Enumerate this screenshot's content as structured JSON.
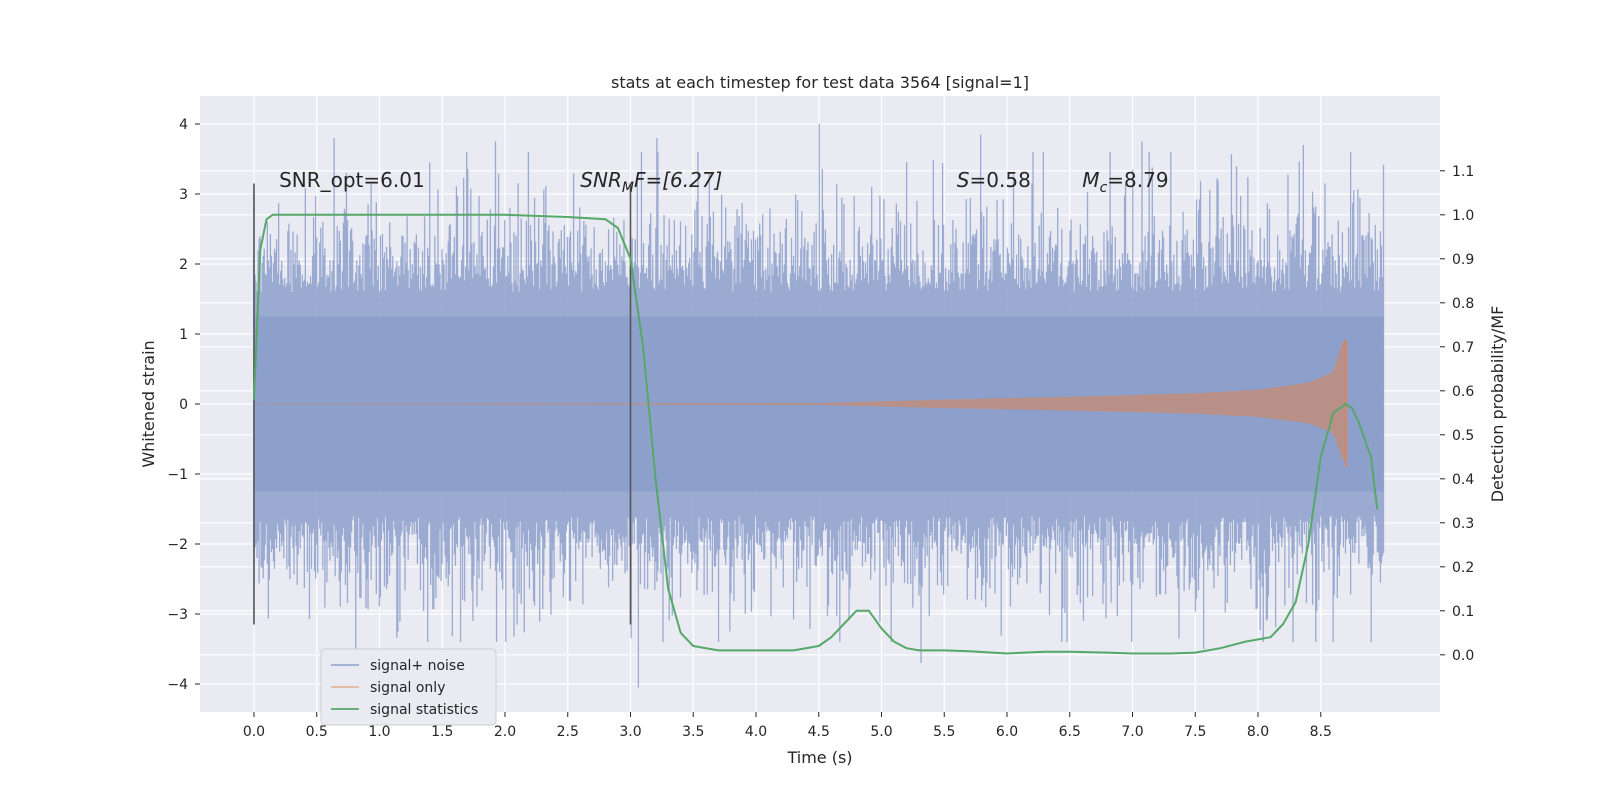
{
  "chart_data": {
    "type": "line",
    "title": "stats at each timestep for test data 3564 [signal=1]",
    "xlabel": "Time (s)",
    "ylabel": "Whitened strain",
    "y2label": "Detection probability/MF",
    "xlim": [
      -0.43,
      9.45
    ],
    "ylim": [
      -4.4,
      4.4
    ],
    "y2lim": [
      -0.13,
      1.27
    ],
    "x_ticks": [
      0.0,
      0.5,
      1.0,
      1.5,
      2.0,
      2.5,
      3.0,
      3.5,
      4.0,
      4.5,
      5.0,
      5.5,
      6.0,
      6.5,
      7.0,
      7.5,
      8.0,
      8.5
    ],
    "x_tick_labels": [
      "0.0",
      "0.5",
      "1.0",
      "1.5",
      "2.0",
      "2.5",
      "3.0",
      "3.5",
      "4.0",
      "4.5",
      "5.0",
      "5.5",
      "6.0",
      "6.5",
      "7.0",
      "7.5",
      "8.0",
      "8.5"
    ],
    "y_ticks": [
      -4,
      -3,
      -2,
      -1,
      0,
      1,
      2,
      3,
      4
    ],
    "y_tick_labels": [
      "−4",
      "−3",
      "−2",
      "−1",
      "0",
      "1",
      "2",
      "3",
      "4"
    ],
    "y2_ticks": [
      0.0,
      0.1,
      0.2,
      0.3,
      0.4,
      0.5,
      0.6,
      0.7,
      0.8,
      0.9,
      1.0,
      1.1
    ],
    "y2_tick_labels": [
      "0.0",
      "0.1",
      "0.2",
      "0.3",
      "0.4",
      "0.5",
      "0.6",
      "0.7",
      "0.8",
      "0.9",
      "1.0",
      "1.1"
    ],
    "grid": true,
    "legend_position": "bottom-left",
    "colors": {
      "noise": "#8c9fcb",
      "signal": "#dd8452",
      "stats": "#55a868",
      "marker": "#555555",
      "background": "#eaeaf2",
      "grid": "#ffffff"
    },
    "series": [
      {
        "name": "signal+ noise",
        "type": "noise",
        "axis": "left",
        "x_start": 0.0,
        "x_end": 9.0,
        "envelope_mean": 1.6,
        "envelope_spread": 0.6,
        "peak_values": [
          3.8,
          3.75,
          3.8,
          4.0,
          3.85,
          3.75,
          3.7
        ],
        "trough_values": [
          -3.6,
          -4.05,
          -3.7,
          -3.5
        ]
      },
      {
        "name": "signal only",
        "type": "chirp",
        "axis": "left",
        "x_start": 0.0,
        "x_merge": 8.7,
        "amplitude_points": [
          [
            0.0,
            0.0
          ],
          [
            4.5,
            0.01
          ],
          [
            5.5,
            0.06
          ],
          [
            6.5,
            0.1
          ],
          [
            7.5,
            0.15
          ],
          [
            8.0,
            0.2
          ],
          [
            8.4,
            0.3
          ],
          [
            8.6,
            0.45
          ],
          [
            8.68,
            0.92
          ]
        ]
      },
      {
        "name": "signal statistics",
        "type": "line",
        "axis": "right",
        "x": [
          0.0,
          0.05,
          0.1,
          0.15,
          0.2,
          0.3,
          0.5,
          1.0,
          1.5,
          2.0,
          2.5,
          2.8,
          2.9,
          3.0,
          3.1,
          3.2,
          3.3,
          3.4,
          3.5,
          3.7,
          3.9,
          4.1,
          4.3,
          4.5,
          4.6,
          4.7,
          4.8,
          4.9,
          4.95,
          5.0,
          5.1,
          5.2,
          5.3,
          5.5,
          5.7,
          6.0,
          6.3,
          6.5,
          6.8,
          7.0,
          7.3,
          7.5,
          7.7,
          7.9,
          8.1,
          8.2,
          8.3,
          8.4,
          8.5,
          8.6,
          8.7,
          8.75,
          8.8,
          8.9,
          8.95
        ],
        "y": [
          0.58,
          0.92,
          0.99,
          1.0,
          1.0,
          1.0,
          1.0,
          1.0,
          1.0,
          1.0,
          0.995,
          0.99,
          0.97,
          0.9,
          0.7,
          0.4,
          0.15,
          0.05,
          0.02,
          0.01,
          0.01,
          0.01,
          0.01,
          0.02,
          0.04,
          0.07,
          0.1,
          0.1,
          0.08,
          0.06,
          0.03,
          0.015,
          0.01,
          0.01,
          0.008,
          0.003,
          0.007,
          0.007,
          0.005,
          0.003,
          0.003,
          0.005,
          0.015,
          0.03,
          0.04,
          0.07,
          0.12,
          0.25,
          0.45,
          0.55,
          0.57,
          0.56,
          0.53,
          0.45,
          0.33
        ]
      }
    ],
    "vertical_markers": [
      {
        "x": 0.0,
        "y_range": [
          -3.15,
          3.15
        ]
      },
      {
        "x": 3.0,
        "y_range": [
          -3.15,
          3.15
        ]
      }
    ],
    "annotations": [
      {
        "id": "snr-opt",
        "x": 0.2,
        "y": 3.1,
        "text": "SNR_opt=6.01",
        "italic": false
      },
      {
        "id": "snr-mf",
        "x": 2.6,
        "y": 3.1,
        "prefix": "SNR",
        "subscript": "M",
        "rest": "F=[6.27]",
        "italic": true
      },
      {
        "id": "s-value",
        "x": 5.6,
        "y": 3.1,
        "prefix": "S",
        "rest": "=0.58",
        "italic": true
      },
      {
        "id": "mc-value",
        "x": 6.6,
        "y": 3.1,
        "prefix": "M",
        "subscript": "c",
        "rest": "=8.79",
        "italic": true
      }
    ]
  }
}
